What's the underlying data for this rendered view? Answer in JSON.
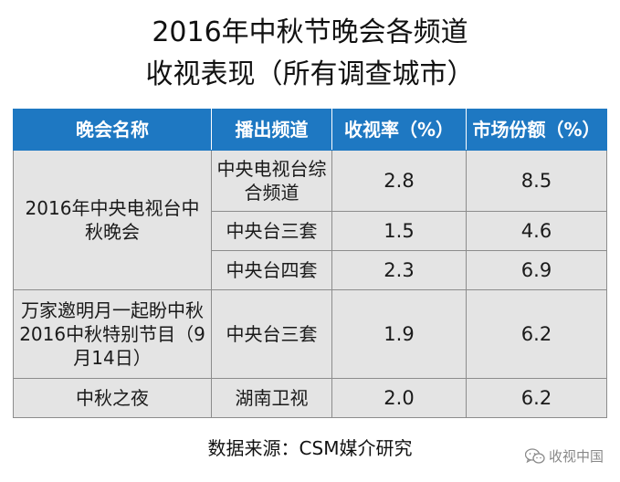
{
  "title": {
    "line1": "2016年中秋节晚会各频道",
    "line2": "收视表现（所有调查城市）"
  },
  "table": {
    "headers": [
      "晚会名称",
      "播出频道",
      "收视率（%）",
      "市场份额（%）"
    ],
    "rows": [
      {
        "program": "2016年中央电视台中秋晚会",
        "channel": "中央电视台综合频道",
        "rating": "2.8",
        "share": "8.5"
      },
      {
        "channel": "中央台三套",
        "rating": "1.5",
        "share": "4.6"
      },
      {
        "channel": "中央台四套",
        "rating": "2.3",
        "share": "6.9"
      },
      {
        "program": "万家邀明月一起盼中秋2016中秋特别节目（9月14日）",
        "channel": "中央台三套",
        "rating": "1.9",
        "share": "6.2"
      },
      {
        "program": "中秋之夜",
        "channel": "湖南卫视",
        "rating": "2.0",
        "share": "6.2"
      }
    ]
  },
  "source": "数据来源：CSM媒介研究",
  "watermark": {
    "icon": "wechat-icon",
    "text": "收视中国"
  },
  "colors": {
    "header_bg": "#1e78c2",
    "cell_bg": "#e4e4e4"
  }
}
